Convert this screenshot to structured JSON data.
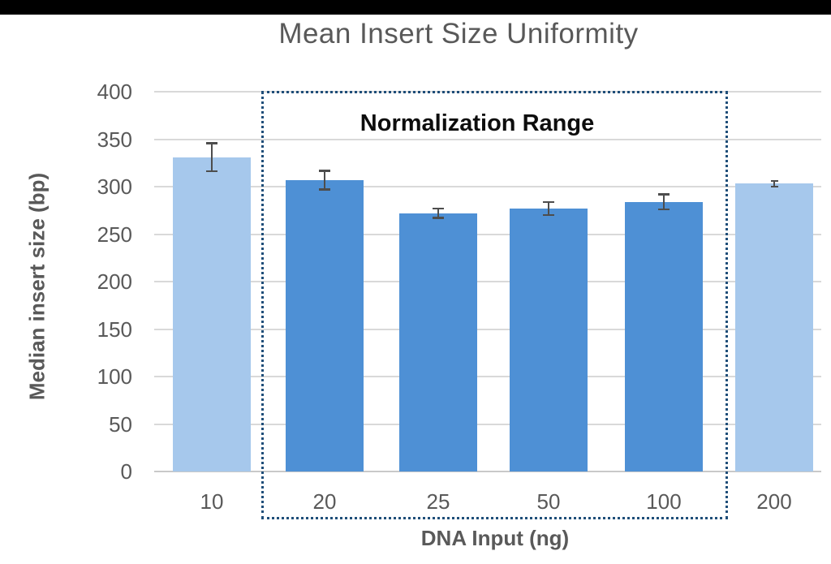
{
  "chart_data": {
    "type": "bar",
    "title": "Mean Insert Size Uniformity",
    "xlabel": "DNA Input (ng)",
    "ylabel": "Median insert size (bp)",
    "categories": [
      "10",
      "20",
      "25",
      "50",
      "100",
      "200"
    ],
    "values": [
      331,
      307,
      272,
      277,
      284,
      303
    ],
    "error_bars": [
      15,
      10,
      5,
      7,
      8,
      3
    ],
    "bar_colors": [
      "#A6C8EC",
      "#4E90D5",
      "#4E90D5",
      "#4E90D5",
      "#4E90D5",
      "#A6C8EC"
    ],
    "ylim": [
      0,
      400
    ],
    "yticks": [
      0,
      50,
      100,
      150,
      200,
      250,
      300,
      350,
      400
    ],
    "grid": true,
    "legend": false,
    "annotation": {
      "label": "Normalization Range",
      "covers_categories": [
        "20",
        "25",
        "50",
        "100"
      ],
      "border_color": "#1F4E79"
    },
    "colors": {
      "bar_dark": "#4E90D5",
      "bar_light": "#A6C8EC",
      "gridline": "#D9D9D9",
      "axis_line": "#C9C9C9",
      "text": "#595959",
      "error_bar": "#4D4D4D",
      "annotation_text": "#0D0D0D",
      "letterbox": "#000000"
    }
  }
}
